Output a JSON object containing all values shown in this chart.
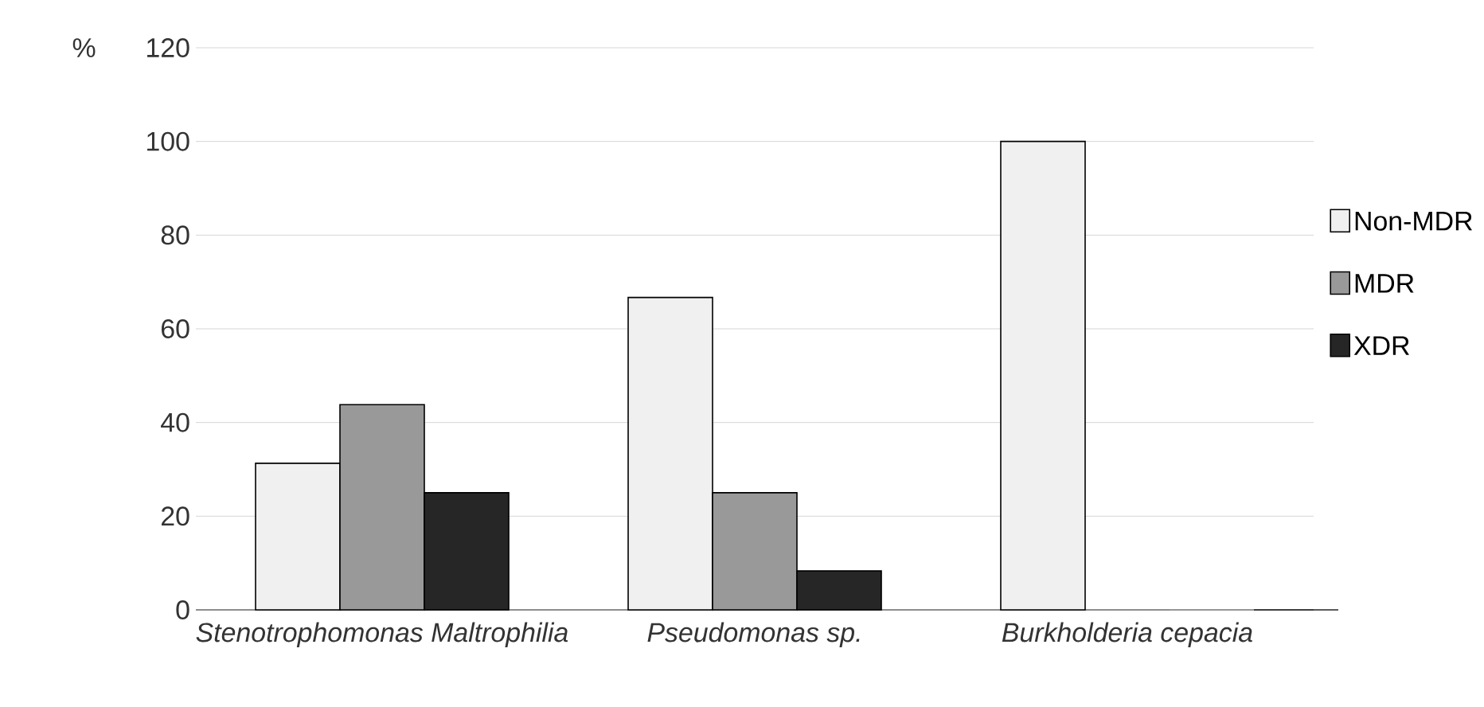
{
  "chart_data": {
    "type": "bar",
    "ylabel": "%",
    "categories": [
      "Stenotrophomonas Maltrophilia",
      "Pseudomonas sp.",
      "Burkholderia cepacia"
    ],
    "series": [
      {
        "name": "Non-MDR",
        "color": "#f0f0f0",
        "values": [
          31.3,
          66.7,
          100
        ]
      },
      {
        "name": "MDR",
        "color": "#999999",
        "values": [
          43.8,
          25,
          0
        ]
      },
      {
        "name": "XDR",
        "color": "#262626",
        "values": [
          25,
          8.3,
          0
        ]
      }
    ],
    "ylim": [
      0,
      120
    ],
    "yticks": [
      0,
      20,
      40,
      60,
      80,
      100,
      120
    ],
    "grid": "y",
    "legend": "right"
  }
}
